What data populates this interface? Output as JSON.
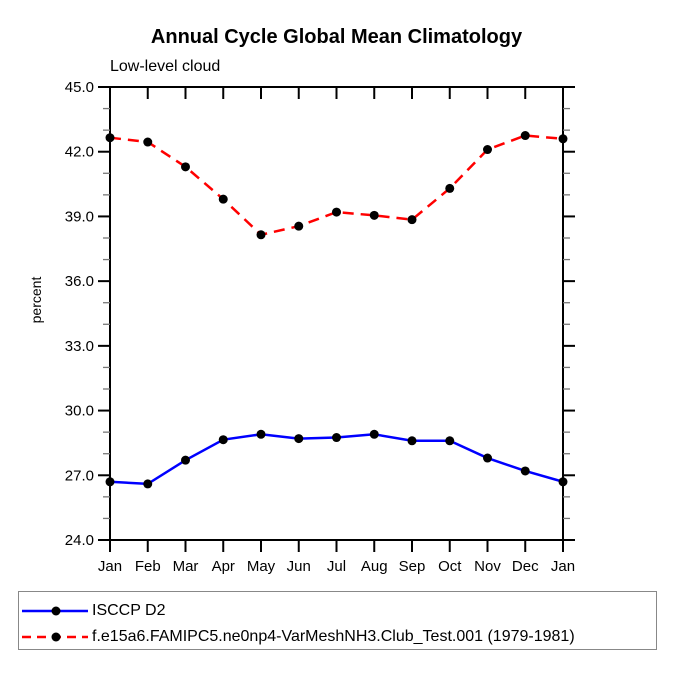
{
  "chart_data": {
    "type": "line",
    "title": "Annual Cycle Global Mean Climatology",
    "subtitle": "Low-level cloud",
    "xlabel": "",
    "ylabel": "percent",
    "categories": [
      "Jan",
      "Feb",
      "Mar",
      "Apr",
      "May",
      "Jun",
      "Jul",
      "Aug",
      "Sep",
      "Oct",
      "Nov",
      "Dec",
      "Jan"
    ],
    "ylim": [
      24.0,
      45.0
    ],
    "y_major_ticks": [
      24.0,
      27.0,
      30.0,
      33.0,
      36.0,
      39.0,
      42.0,
      45.0
    ],
    "y_tick_labels": [
      "24.0",
      "27.0",
      "30.0",
      "33.0",
      "36.0",
      "39.0",
      "42.0",
      "45.0"
    ],
    "y_minor_step": 1.0,
    "grid": false,
    "legend_position": "bottom-left-box",
    "series": [
      {
        "name": "ISCCP D2",
        "line_style": "solid",
        "color": "#0000ff",
        "marker": "circle",
        "marker_color": "#000000",
        "values": [
          26.7,
          26.6,
          27.7,
          28.65,
          28.9,
          28.7,
          28.75,
          28.9,
          28.6,
          28.6,
          27.8,
          27.2,
          26.7
        ]
      },
      {
        "name": "f.e15a6.FAMIPC5.ne0np4-VarMeshNH3.Club_Test.001 (1979-1981)",
        "line_style": "dashed",
        "color": "#ff0000",
        "marker": "circle",
        "marker_color": "#000000",
        "values": [
          42.65,
          42.45,
          41.3,
          39.8,
          38.15,
          38.55,
          39.2,
          39.05,
          38.85,
          40.3,
          42.1,
          42.75,
          42.6
        ]
      }
    ],
    "style": {
      "axis_color": "#000000",
      "minor_tick_color": "#777777",
      "legend_border_color": "#888888"
    }
  }
}
